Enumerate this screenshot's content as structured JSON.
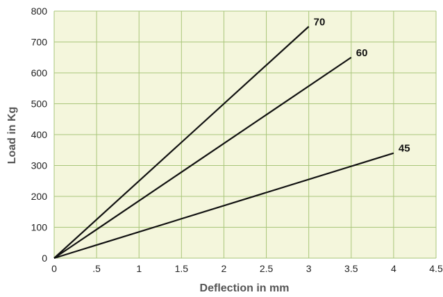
{
  "chart_data": {
    "type": "line",
    "title": "",
    "xlabel": "Deflection in mm",
    "ylabel": "Load in Kg",
    "xlim": [
      0,
      4.5
    ],
    "ylim": [
      0,
      800
    ],
    "x_ticks": [
      0,
      0.5,
      1,
      1.5,
      2,
      2.5,
      3,
      3.5,
      4,
      4.5
    ],
    "x_tick_labels": [
      "0",
      ".5",
      "1",
      "1.5",
      "2",
      "2.5",
      "3",
      "3.5",
      "4",
      "4.5"
    ],
    "y_ticks": [
      0,
      100,
      200,
      300,
      400,
      500,
      600,
      700,
      800
    ],
    "y_tick_labels": [
      "0",
      "100",
      "200",
      "300",
      "400",
      "500",
      "600",
      "700",
      "800"
    ],
    "grid": true,
    "legend": "none (lines labeled at ends)",
    "colors": {
      "plot_background": "#f4f6dc",
      "grid": "#a9c67a",
      "line": "#111111"
    },
    "series": [
      {
        "name": "70",
        "x": [
          0,
          3.0
        ],
        "y": [
          0,
          750
        ]
      },
      {
        "name": "60",
        "x": [
          0,
          3.5
        ],
        "y": [
          0,
          650
        ]
      },
      {
        "name": "45",
        "x": [
          0,
          4.0
        ],
        "y": [
          0,
          340
        ]
      }
    ]
  }
}
